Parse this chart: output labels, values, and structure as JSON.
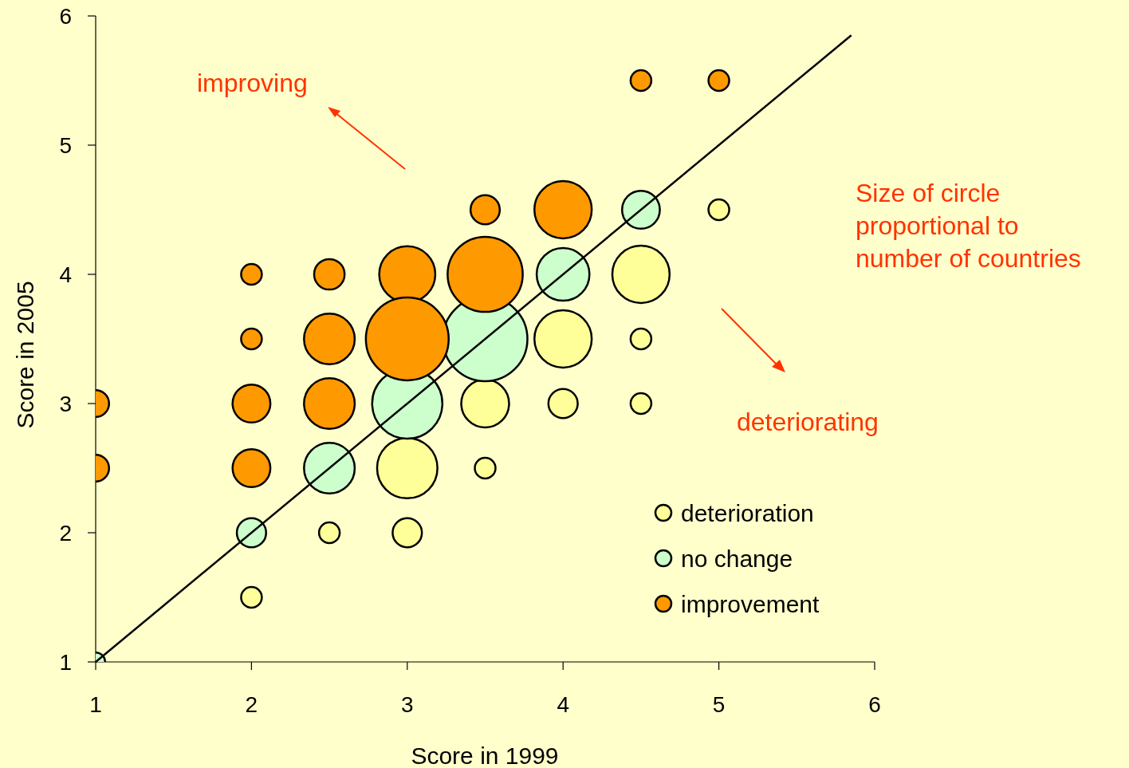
{
  "chart_data": {
    "type": "bubble",
    "xlabel": "Score in 1999",
    "ylabel": "Score in 2005",
    "xlim": [
      1,
      6
    ],
    "ylim": [
      1,
      6
    ],
    "xticks": [
      1,
      2,
      3,
      4,
      5,
      6
    ],
    "yticks": [
      1,
      2,
      3,
      4,
      5,
      6
    ],
    "legend": "bottom right",
    "marker": "circle",
    "annotations": [
      "improving",
      "deteriorating",
      "Size of circle proportional to number of countries"
    ],
    "series": [
      {
        "name": "deterioration",
        "color": "#ffff99",
        "x": [
          2,
          2.5,
          3,
          3,
          3.5,
          3.5,
          4,
          4,
          4.5,
          4.5,
          4.5,
          5
        ],
        "values": [
          1.5,
          2,
          2,
          2.5,
          3,
          2.5,
          3.5,
          3,
          4,
          3.5,
          3,
          4.5
        ],
        "sizes": [
          0.06,
          0.06,
          0.12,
          0.51,
          0.32,
          0.06,
          0.46,
          0.12,
          0.46,
          0.06,
          0.06,
          0.06
        ]
      },
      {
        "name": "no change",
        "color": "#ccffcc",
        "x": [
          1,
          2,
          2.5,
          3,
          3.5,
          4,
          4.5
        ],
        "values": [
          1,
          2,
          2.5,
          3,
          3.5,
          4,
          4.5
        ],
        "sizes": [
          0.05,
          0.12,
          0.36,
          0.69,
          1,
          0.39,
          0.2
        ]
      },
      {
        "name": "improvement",
        "color": "#ff9900",
        "x": [
          1,
          1,
          2,
          2,
          2,
          2,
          2.5,
          2.5,
          2.5,
          3,
          3,
          3.5,
          3.5,
          4,
          4.5,
          5
        ],
        "values": [
          3,
          2.5,
          4,
          3.5,
          3,
          2.5,
          4,
          3.5,
          3,
          4,
          3.5,
          4.5,
          4,
          4.5,
          5.5,
          5.5
        ],
        "sizes": [
          0.1,
          0.1,
          0.06,
          0.06,
          0.2,
          0.2,
          0.13,
          0.36,
          0.36,
          0.44,
          0.96,
          0.12,
          0.79,
          0.46,
          0.06,
          0.06
        ]
      },
      {
        "type": "line",
        "color": "#000000",
        "marker": "none",
        "x": [
          1,
          5.85
        ],
        "values": [
          1,
          5.85
        ]
      }
    ]
  }
}
